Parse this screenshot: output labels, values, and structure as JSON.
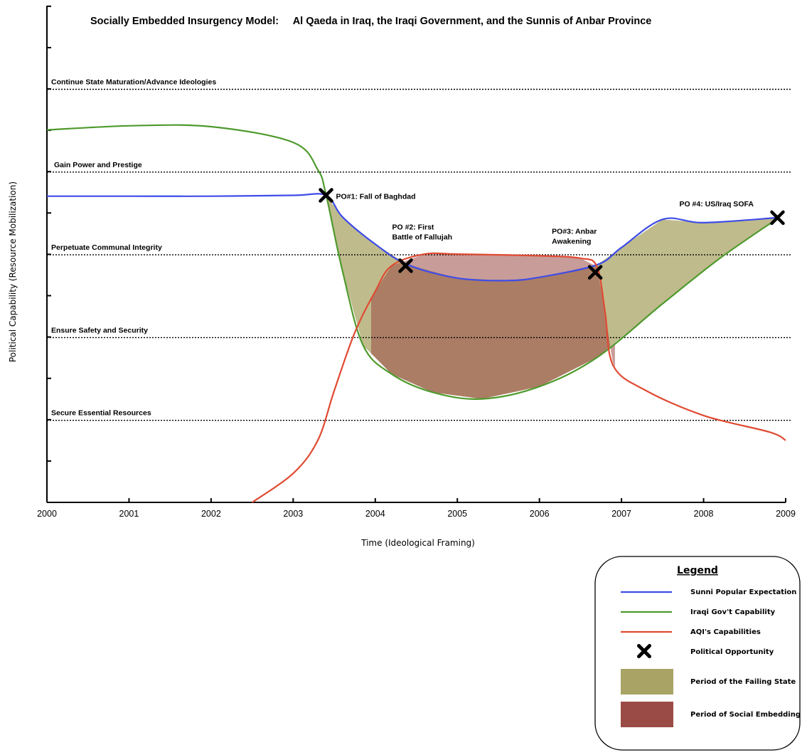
{
  "chart_data": {
    "type": "line",
    "title": "Socially Embedded Insurgency Model:     Al Qaeda in Iraq, the Iraqi Government, and the Sunnis of Anbar Province",
    "xlabel": "Time (Ideological Framing)",
    "ylabel": "Political Capability (Resource Mobilization)",
    "xlim": [
      2000,
      2009
    ],
    "x_ticks": [
      "2000",
      "2001",
      "2002",
      "2003",
      "2004",
      "2005",
      "2006",
      "2007",
      "2008",
      "2009"
    ],
    "y_ticks_labeled": false,
    "ylim": [
      0,
      6
    ],
    "levels": [
      {
        "name": "Continue State Maturation/Advance Ideologies",
        "y": 5
      },
      {
        "name": "Gain Power and Prestige",
        "y": 4
      },
      {
        "name": "Perpetuate Communal Integrity",
        "y": 3
      },
      {
        "name": "Ensure Safety and Security",
        "y": 2
      },
      {
        "name": "Secure Essential Resources",
        "y": 1
      }
    ],
    "series": [
      {
        "name": "Sunni Popular Expectation",
        "color": "#3f4ce8",
        "x": [
          2000,
          2001,
          2002,
          2003,
          2003.4,
          2003.6,
          2004,
          2004.4,
          2005,
          2005.6,
          2006,
          2006.7,
          2007,
          2007.5,
          2008,
          2008.9
        ],
        "y": [
          3.7,
          3.7,
          3.7,
          3.71,
          3.71,
          3.45,
          3.12,
          2.87,
          2.71,
          2.68,
          2.72,
          2.87,
          3.08,
          3.42,
          3.38,
          3.44
        ]
      },
      {
        "name": "Iraqi Gov't Capability",
        "color": "#4e9a2d",
        "x": [
          2000,
          2001,
          2002,
          2003,
          2003.3,
          2003.4,
          2003.6,
          2003.85,
          2004.2,
          2004.7,
          2005.3,
          2006,
          2006.7,
          2007.5,
          2008.2,
          2008.9
        ],
        "y": [
          4.5,
          4.55,
          4.54,
          4.35,
          4.02,
          3.72,
          2.8,
          1.9,
          1.55,
          1.33,
          1.25,
          1.4,
          1.75,
          2.4,
          2.95,
          3.43
        ]
      },
      {
        "name": "AQI's Capabilities",
        "color": "#e04a32",
        "x": [
          2002.5,
          2003,
          2003.3,
          2003.5,
          2003.75,
          2004,
          2004.2,
          2004.6,
          2005,
          2006,
          2006.5,
          2006.7,
          2006.8,
          2006.9,
          2007.3,
          2008,
          2008.8,
          2009
        ],
        "y": [
          0,
          0.35,
          0.75,
          1.35,
          2.05,
          2.55,
          2.86,
          3,
          3,
          2.98,
          2.95,
          2.85,
          2.3,
          1.65,
          1.35,
          1.05,
          0.85,
          0.75
        ]
      }
    ],
    "markers": [
      {
        "label": "PO#1: Fall of Baghdad",
        "x": 2003.4,
        "y": 3.71
      },
      {
        "label": "PO #2:  First Battle of Fallujah",
        "x": 2004.37,
        "y": 2.86
      },
      {
        "label": "PO#3: Anbar Awakening",
        "x": 2006.68,
        "y": 2.78
      },
      {
        "label": "PO #4:  US/Iraq SOFA",
        "x": 2008.9,
        "y": 3.44
      }
    ],
    "regions": [
      {
        "name": "Period of the Failing State",
        "color": "#a9a465"
      },
      {
        "name": "Period of Social Embedding",
        "color": "#9b4b45"
      }
    ],
    "legend": {
      "title": "Legend",
      "placement": "bottom-right",
      "items": [
        {
          "label": "Sunni Popular Expectation",
          "kind": "line",
          "color": "#3f4ce8"
        },
        {
          "label": "Iraqi Gov't Capability",
          "kind": "line",
          "color": "#4e9a2d"
        },
        {
          "label": "AQI's Capabilities",
          "kind": "line",
          "color": "#e04a32"
        },
        {
          "label": "Political Opportunity",
          "kind": "x-marker",
          "color": "#000000"
        },
        {
          "label": "Period of the Failing State",
          "kind": "swatch",
          "color": "#a9a465"
        },
        {
          "label": "Period of Social Embedding",
          "kind": "swatch",
          "color": "#9b4b45"
        }
      ]
    },
    "grid": false
  }
}
